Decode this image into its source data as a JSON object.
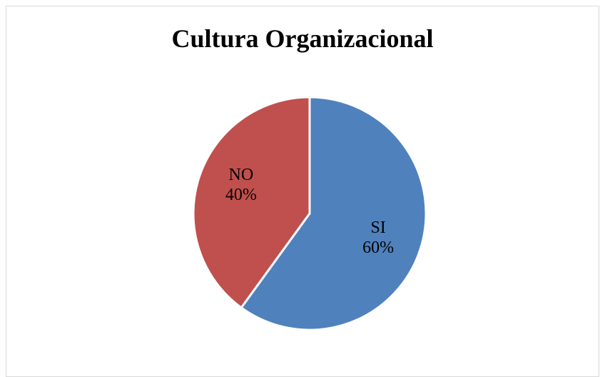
{
  "chart_data": {
    "type": "pie",
    "title": "Cultura Organizacional",
    "slices": [
      {
        "label": "SI",
        "value": 60,
        "value_label": "60%",
        "color": "#4F81BD"
      },
      {
        "label": "NO",
        "value": 40,
        "value_label": "40%",
        "color": "#C0504D"
      }
    ],
    "legend": "none"
  }
}
